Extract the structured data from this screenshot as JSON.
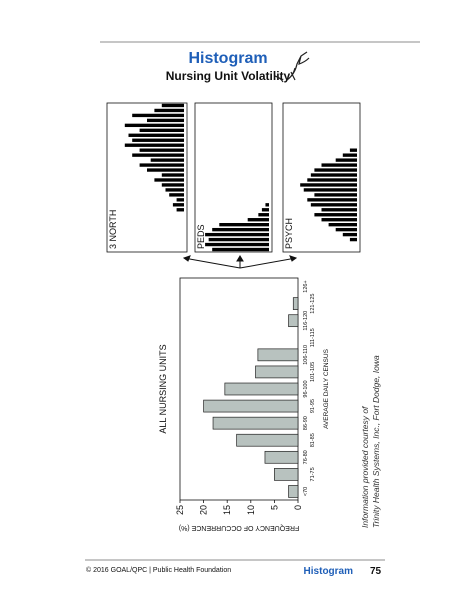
{
  "header": {
    "title": "Histogram",
    "subtitle": "Nursing Unit Volatility"
  },
  "chart_data": {
    "type": "bar",
    "title": "ALL NURSING UNITS",
    "x_label": "AVERAGE DAILY CENSUS",
    "y_label": "FREQUENCY OF OCCURRENCE (%)",
    "categories": [
      "<70",
      "71-75",
      "76-80",
      "81-85",
      "86-90",
      "91-95",
      "96-100",
      "101-105",
      "106-110",
      "111-115",
      "116-120",
      "121-125",
      "126+"
    ],
    "values": [
      2,
      5,
      7,
      13,
      18,
      20,
      15.5,
      9,
      8.5,
      0,
      2,
      1,
      0
    ],
    "color": "#b8c2bf",
    "ylim": [
      0,
      25
    ],
    "yticks": [
      0,
      5,
      10,
      15,
      20,
      25
    ]
  },
  "panels": [
    {
      "label": "3 NORTH",
      "values": [
        0,
        0,
        0,
        0,
        0,
        0,
        0,
        0,
        1,
        1.5,
        1,
        2,
        2.5,
        3,
        4,
        3,
        5,
        6,
        4.5,
        7,
        6,
        8,
        7,
        7.5,
        6,
        8,
        5,
        7,
        4,
        3
      ]
    },
    {
      "label": "PEDS",
      "values": [
        8,
        9,
        8.5,
        9,
        8,
        7,
        3,
        1.5,
        1,
        0.5
      ]
    },
    {
      "label": "PSYCH",
      "values": [
        0,
        0,
        1,
        2,
        3,
        4,
        5,
        6,
        5,
        6.5,
        7,
        6,
        7.5,
        8,
        7,
        6.5,
        6,
        5,
        3,
        2,
        1
      ]
    }
  ],
  "note": [
    "Information provided courtesy of",
    "Trinity Health Systems, Inc., Fort Dodge, Iowa"
  ],
  "footer": {
    "credit": "© 2016 GOAL/QPC | Public Health Foundation",
    "section": "Histogram",
    "page": 75
  }
}
